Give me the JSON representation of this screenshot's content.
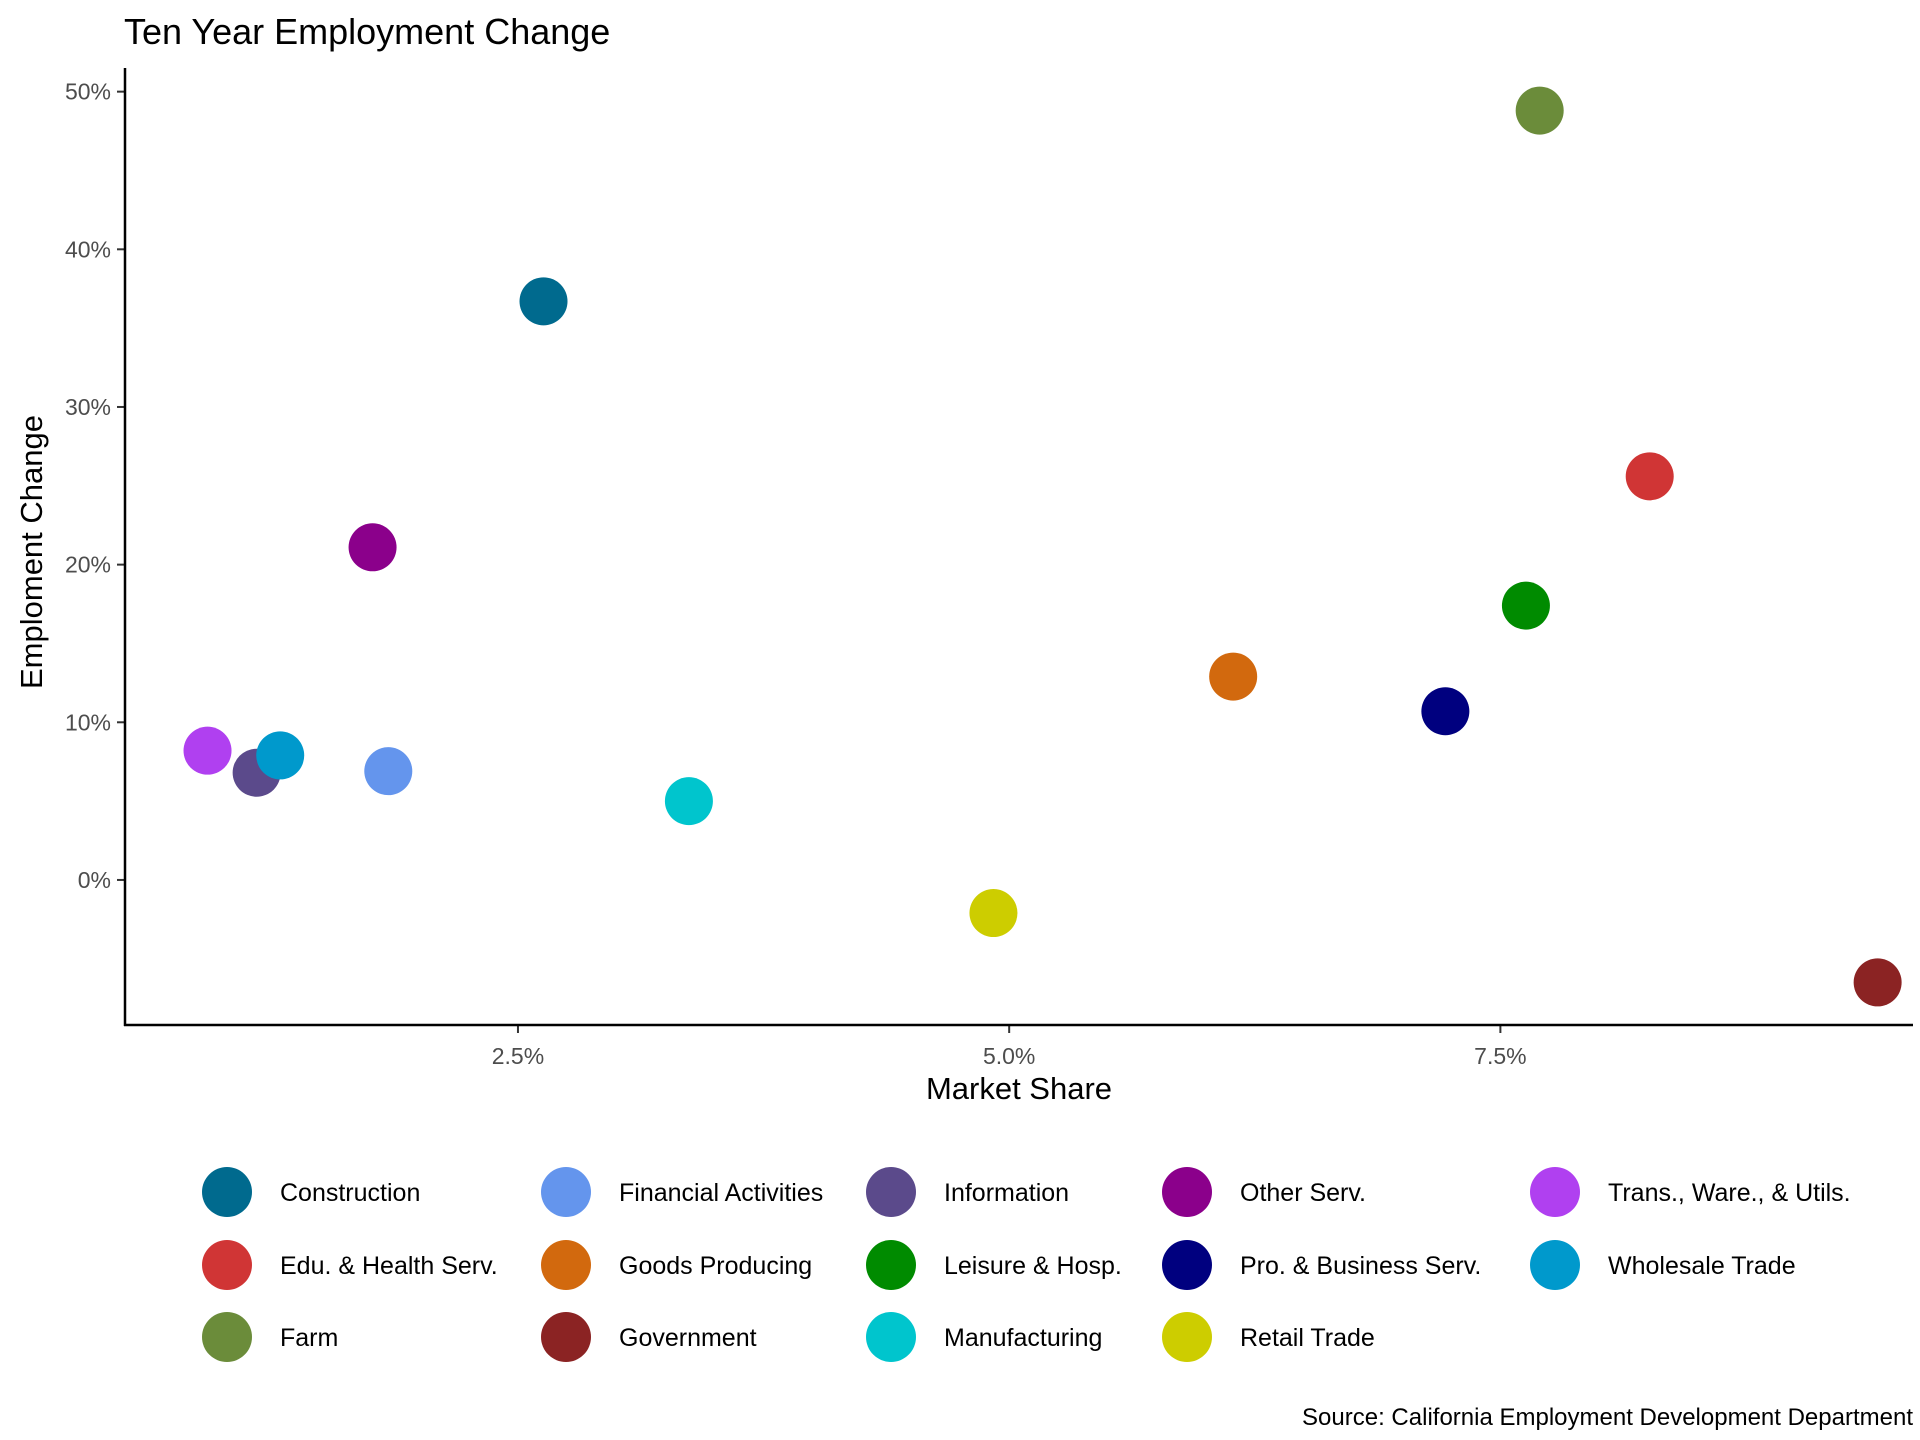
{
  "chart_data": {
    "type": "scatter",
    "title": "Ten Year Employment Change",
    "xlabel": "Market Share",
    "ylabel": "Emploment Change",
    "caption": "Source: California Employment Development Department",
    "xlim": [
      0.5,
      9.6
    ],
    "ylim": [
      -9.2,
      51.5
    ],
    "x_ticks": [
      {
        "value": 2.5,
        "label": "2.5%"
      },
      {
        "value": 5.0,
        "label": "5.0%"
      },
      {
        "value": 7.5,
        "label": "7.5%"
      }
    ],
    "y_ticks": [
      {
        "value": 0,
        "label": "0%"
      },
      {
        "value": 10,
        "label": "10%"
      },
      {
        "value": 20,
        "label": "20%"
      },
      {
        "value": 30,
        "label": "30%"
      },
      {
        "value": 40,
        "label": "40%"
      },
      {
        "value": 50,
        "label": "50%"
      }
    ],
    "grid": false,
    "legend_position": "bottom",
    "series": [
      {
        "name": "Construction",
        "color": "#006a8e",
        "x": 2.63,
        "y": 36.7
      },
      {
        "name": "Financial Activities",
        "color": "#6495ed",
        "x": 1.84,
        "y": 6.9
      },
      {
        "name": "Information",
        "color": "#5b4a8b",
        "x": 1.17,
        "y": 6.8
      },
      {
        "name": "Other Serv.",
        "color": "#8b008b",
        "x": 1.76,
        "y": 21.1
      },
      {
        "name": "Trans., Ware., & Utils.",
        "color": "#b040f0",
        "x": 0.92,
        "y": 8.2
      },
      {
        "name": "Edu. & Health Serv.",
        "color": "#d03535",
        "x": 8.26,
        "y": 25.6
      },
      {
        "name": "Goods Producing",
        "color": "#d2690e",
        "x": 6.14,
        "y": 12.9
      },
      {
        "name": "Leisure & Hosp.",
        "color": "#008b00",
        "x": 7.63,
        "y": 17.4
      },
      {
        "name": "Pro. & Business Serv.",
        "color": "#00007f",
        "x": 7.22,
        "y": 10.7
      },
      {
        "name": "Wholesale Trade",
        "color": "#0099cc",
        "x": 1.29,
        "y": 7.9
      },
      {
        "name": "Farm",
        "color": "#6b8c3a",
        "x": 7.7,
        "y": 48.8
      },
      {
        "name": "Government",
        "color": "#8b2323",
        "x": 9.42,
        "y": -6.5
      },
      {
        "name": "Manufacturing",
        "color": "#00c5cd",
        "x": 3.37,
        "y": 5.0
      },
      {
        "name": "Retail Trade",
        "color": "#cdcd00",
        "x": 4.92,
        "y": -2.1
      }
    ]
  }
}
